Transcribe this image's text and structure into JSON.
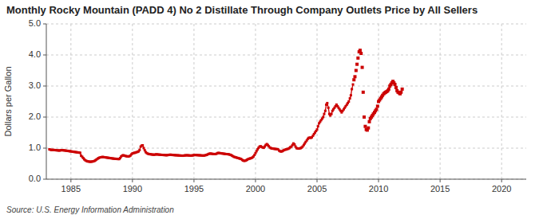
{
  "chart_data": {
    "type": "line",
    "title": "Monthly Rocky Mountain (PADD 4) No 2 Distillate Through Company Outlets Price by All Sellers",
    "y_label": "Dollars per Gallon",
    "source": "Source: U.S. Energy Information Administration",
    "xlim": [
      1983,
      2022
    ],
    "ylim": [
      0.0,
      5.0
    ],
    "xticks": [
      1985,
      1990,
      1995,
      2000,
      2005,
      2010,
      2015,
      2020
    ],
    "yticks": [
      {
        "value": 0.0,
        "label": "0.0"
      },
      {
        "value": 1.0,
        "label": "1.0"
      },
      {
        "value": 2.0,
        "label": "2.0"
      },
      {
        "value": 3.0,
        "label": "3.0"
      },
      {
        "value": 4.0,
        "label": "4.0"
      },
      {
        "value": 5.0,
        "label": "5.0"
      }
    ],
    "grid": true,
    "series": [
      {
        "type": "line",
        "marker": "square",
        "line_style": "solid",
        "color": "#cc0000",
        "x": [
          1983.25,
          1983.33,
          1983.42,
          1983.5,
          1983.58,
          1983.67,
          1983.75,
          1983.83,
          1983.92,
          1984.0,
          1984.08,
          1984.17,
          1984.25,
          1984.33,
          1984.42,
          1984.5,
          1984.58,
          1984.67,
          1984.75,
          1984.83,
          1984.92,
          1985.0,
          1985.08,
          1985.17,
          1985.25,
          1985.33,
          1985.42,
          1985.5,
          1985.58,
          1985.67,
          1985.75,
          1985.83,
          1985.92,
          1986.0,
          1986.08,
          1986.17,
          1986.25,
          1986.33,
          1986.42,
          1986.5,
          1986.58,
          1986.67,
          1986.75,
          1986.83,
          1986.92,
          1987.0,
          1987.08,
          1987.17,
          1987.25,
          1987.33,
          1987.42,
          1987.5,
          1987.58,
          1987.67,
          1987.75,
          1987.83,
          1987.92,
          1988.0,
          1988.08,
          1988.17,
          1988.25,
          1988.33,
          1988.42,
          1988.5,
          1988.58,
          1988.67,
          1988.75,
          1988.83,
          1988.92,
          1989.0,
          1989.08,
          1989.17,
          1989.25,
          1989.33,
          1989.42,
          1989.5,
          1989.58,
          1989.67,
          1989.75,
          1989.83,
          1989.92,
          1990.0,
          1990.08,
          1990.17,
          1990.25,
          1990.33,
          1990.42,
          1990.5,
          1990.58,
          1990.67,
          1990.75,
          1990.83,
          1990.92,
          1991.0,
          1991.08,
          1991.17,
          1991.25,
          1991.33,
          1991.42,
          1991.5,
          1991.58,
          1991.67,
          1991.75,
          1991.83,
          1991.92,
          1992.0,
          1992.08,
          1992.17,
          1992.25,
          1992.33,
          1992.42,
          1992.5,
          1992.58,
          1992.67,
          1992.75,
          1992.83,
          1992.92,
          1993.0,
          1993.08,
          1993.17,
          1993.25,
          1993.33,
          1993.42,
          1993.5,
          1993.58,
          1993.67,
          1993.75,
          1993.83,
          1993.92,
          1994.0,
          1994.08,
          1994.17,
          1994.25,
          1994.33,
          1994.42,
          1994.5,
          1994.58,
          1994.67,
          1994.75,
          1994.83,
          1994.92,
          1995.0,
          1995.08,
          1995.17,
          1995.25,
          1995.33,
          1995.42,
          1995.5,
          1995.58,
          1995.67,
          1995.75,
          1995.83,
          1995.92,
          1996.0,
          1996.08,
          1996.17,
          1996.25,
          1996.33,
          1996.42,
          1996.5,
          1996.58,
          1996.67,
          1996.75,
          1996.83,
          1996.92,
          1997.0,
          1997.08,
          1997.17,
          1997.25,
          1997.33,
          1997.42,
          1997.5,
          1997.58,
          1997.67,
          1997.75,
          1997.83,
          1997.92,
          1998.0,
          1998.08,
          1998.17,
          1998.25,
          1998.33,
          1998.42,
          1998.5,
          1998.58,
          1998.67,
          1998.75,
          1998.83,
          1998.92,
          1999.0,
          1999.08,
          1999.17,
          1999.25,
          1999.33,
          1999.42,
          1999.5,
          1999.58,
          1999.67,
          1999.75,
          1999.83,
          1999.92,
          2000.0,
          2000.08,
          2000.17,
          2000.25,
          2000.33,
          2000.42,
          2000.5,
          2000.58,
          2000.67,
          2000.75,
          2000.83,
          2000.92,
          2001.0,
          2001.08,
          2001.17,
          2001.25,
          2001.33,
          2001.42,
          2001.5,
          2001.58,
          2001.67,
          2001.75,
          2001.83,
          2001.92,
          2002.0,
          2002.08,
          2002.17,
          2002.25,
          2002.33,
          2002.42,
          2002.5,
          2002.58,
          2002.67,
          2002.75,
          2002.83,
          2002.92,
          2003.0,
          2003.08,
          2003.17,
          2003.25,
          2003.33,
          2003.42,
          2003.5,
          2003.58,
          2003.67,
          2003.75,
          2003.83,
          2003.92,
          2004.0,
          2004.08,
          2004.17,
          2004.25,
          2004.33,
          2004.42,
          2004.5,
          2004.58,
          2004.67,
          2004.75,
          2004.83,
          2004.92,
          2005.0,
          2005.08,
          2005.17,
          2005.25,
          2005.33,
          2005.42,
          2005.5,
          2005.58,
          2005.67,
          2005.75,
          2005.83,
          2005.92,
          2006.0,
          2006.08,
          2006.17,
          2006.25,
          2006.33,
          2006.42,
          2006.5,
          2006.58,
          2006.67,
          2006.75,
          2006.83,
          2006.92,
          2007.0,
          2007.08,
          2007.17,
          2007.25,
          2007.33,
          2007.42,
          2007.5,
          2007.58,
          2007.67,
          2007.75,
          2007.83,
          2007.92
        ],
        "values": [
          0.96,
          0.95,
          0.94,
          0.945,
          0.942,
          0.938,
          0.935,
          0.93,
          0.928,
          0.925,
          0.922,
          0.93,
          0.935,
          0.932,
          0.928,
          0.925,
          0.92,
          0.915,
          0.91,
          0.905,
          0.9,
          0.895,
          0.89,
          0.885,
          0.88,
          0.875,
          0.87,
          0.865,
          0.86,
          0.855,
          0.85,
          0.755,
          0.72,
          0.68,
          0.64,
          0.61,
          0.59,
          0.575,
          0.57,
          0.565,
          0.56,
          0.565,
          0.57,
          0.575,
          0.59,
          0.61,
          0.635,
          0.66,
          0.68,
          0.695,
          0.705,
          0.71,
          0.715,
          0.71,
          0.705,
          0.7,
          0.695,
          0.69,
          0.685,
          0.68,
          0.675,
          0.67,
          0.665,
          0.66,
          0.658,
          0.655,
          0.652,
          0.65,
          0.648,
          0.68,
          0.73,
          0.76,
          0.77,
          0.76,
          0.75,
          0.74,
          0.735,
          0.73,
          0.74,
          0.76,
          0.8,
          0.83,
          0.84,
          0.85,
          0.855,
          0.87,
          0.88,
          0.895,
          0.94,
          1.05,
          1.08,
          1.09,
          1.0,
          0.93,
          0.87,
          0.84,
          0.82,
          0.81,
          0.805,
          0.8,
          0.795,
          0.79,
          0.788,
          0.792,
          0.8,
          0.798,
          0.795,
          0.79,
          0.788,
          0.785,
          0.782,
          0.78,
          0.778,
          0.775,
          0.772,
          0.775,
          0.78,
          0.785,
          0.788,
          0.785,
          0.78,
          0.778,
          0.775,
          0.772,
          0.77,
          0.768,
          0.765,
          0.763,
          0.76,
          0.758,
          0.755,
          0.76,
          0.765,
          0.768,
          0.77,
          0.768,
          0.765,
          0.762,
          0.76,
          0.762,
          0.768,
          0.775,
          0.78,
          0.778,
          0.775,
          0.772,
          0.77,
          0.768,
          0.765,
          0.762,
          0.76,
          0.762,
          0.77,
          0.78,
          0.79,
          0.81,
          0.82,
          0.825,
          0.82,
          0.815,
          0.81,
          0.808,
          0.81,
          0.82,
          0.84,
          0.845,
          0.84,
          0.835,
          0.83,
          0.825,
          0.82,
          0.815,
          0.81,
          0.808,
          0.805,
          0.8,
          0.79,
          0.78,
          0.76,
          0.74,
          0.72,
          0.71,
          0.7,
          0.69,
          0.68,
          0.67,
          0.66,
          0.65,
          0.62,
          0.6,
          0.59,
          0.595,
          0.61,
          0.63,
          0.65,
          0.66,
          0.67,
          0.68,
          0.7,
          0.73,
          0.78,
          0.84,
          0.9,
          0.96,
          1.01,
          1.05,
          1.06,
          1.04,
          1.02,
          1.01,
          1.05,
          1.1,
          1.13,
          1.1,
          1.06,
          1.02,
          1.0,
          0.99,
          0.985,
          0.98,
          0.975,
          0.97,
          0.965,
          0.96,
          0.92,
          0.9,
          0.89,
          0.9,
          0.92,
          0.94,
          0.95,
          0.96,
          0.97,
          0.98,
          1.0,
          1.03,
          1.05,
          1.1,
          1.15,
          1.12,
          1.05,
          1.0,
          0.99,
          0.985,
          0.99,
          1.0,
          1.02,
          1.05,
          1.1,
          1.15,
          1.2,
          1.25,
          1.3,
          1.33,
          1.34,
          1.33,
          1.35,
          1.4,
          1.45,
          1.5,
          1.55,
          1.6,
          1.7,
          1.8,
          1.85,
          1.9,
          1.95,
          2.0,
          2.1,
          2.2,
          2.4,
          2.45,
          2.3,
          2.1,
          2.05,
          2.1,
          2.2,
          2.25,
          2.3,
          2.35,
          2.4,
          2.35,
          2.3,
          2.25,
          2.2,
          2.15,
          2.2,
          2.25,
          2.3,
          2.35,
          2.4,
          2.45,
          2.5,
          2.6,
          2.7,
          2.9,
          3.05
        ]
      },
      {
        "type": "scatter",
        "marker": "square",
        "color": "#cc0000",
        "x": [
          2008.0,
          2008.08,
          2008.17,
          2008.25,
          2008.33,
          2008.42,
          2008.5,
          2008.58,
          2008.67,
          2008.75,
          2008.83,
          2008.92,
          2009.0,
          2009.08,
          2009.17,
          2009.25,
          2009.33,
          2009.42,
          2009.5,
          2009.58,
          2009.67,
          2009.75,
          2009.83,
          2009.92,
          2010.0,
          2010.08,
          2010.17,
          2010.25,
          2010.33,
          2010.42,
          2010.5,
          2010.58,
          2010.67,
          2010.75,
          2010.83,
          2010.92,
          2011.0,
          2011.08,
          2011.17,
          2011.25,
          2011.33,
          2011.42,
          2011.5,
          2011.58,
          2011.67,
          2011.75,
          2011.83,
          2011.92
        ],
        "values": [
          3.2,
          3.3,
          3.5,
          3.7,
          3.9,
          4.1,
          4.15,
          4.05,
          3.6,
          2.8,
          2.0,
          1.7,
          1.6,
          1.58,
          1.65,
          1.85,
          1.95,
          2.0,
          2.05,
          2.1,
          2.15,
          2.2,
          2.25,
          2.35,
          2.5,
          2.55,
          2.6,
          2.65,
          2.7,
          2.75,
          2.78,
          2.8,
          2.82,
          2.85,
          2.9,
          3.0,
          3.05,
          3.1,
          3.15,
          3.1,
          3.05,
          2.95,
          2.85,
          2.8,
          2.78,
          2.75,
          2.8,
          2.9
        ]
      }
    ]
  }
}
